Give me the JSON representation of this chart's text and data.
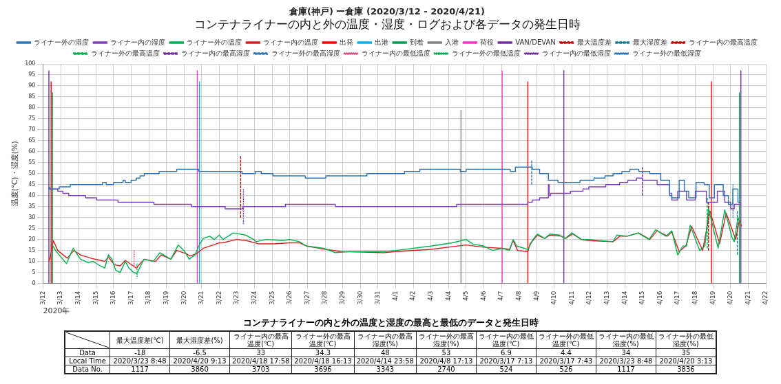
{
  "chart_data": [
    {
      "type": "line",
      "title": "倉庫(神戸) ー倉庫 (2020/3/12 - 2020/4/21)",
      "subtitle": "コンテナライナーの内と外の温度・湿度・ログおよび各データの発生日時",
      "xlabel": "2020年",
      "ylabel": "温度(℃)・湿度(%)",
      "xlim": [
        "2020-03-12",
        "2020-04-22"
      ],
      "ylim": [
        0,
        100
      ],
      "xticks": [
        {
          "value": "2020-03-12",
          "label": "3/12"
        },
        {
          "value": "2020-03-13",
          "label": "3/13"
        },
        {
          "value": "2020-03-14",
          "label": "3/14"
        },
        {
          "value": "2020-03-15",
          "label": "3/15"
        },
        {
          "value": "2020-03-16",
          "label": "3/16"
        },
        {
          "value": "2020-03-17",
          "label": "3/17"
        },
        {
          "value": "2020-03-18",
          "label": "3/18"
        },
        {
          "value": "2020-03-19",
          "label": "3/19"
        },
        {
          "value": "2020-03-20",
          "label": "3/20"
        },
        {
          "value": "2020-03-21",
          "label": "3/21"
        },
        {
          "value": "2020-03-22",
          "label": "3/22"
        },
        {
          "value": "2020-03-23",
          "label": "3/23"
        },
        {
          "value": "2020-03-24",
          "label": "3/24"
        },
        {
          "value": "2020-03-25",
          "label": "3/25"
        },
        {
          "value": "2020-03-26",
          "label": "3/26"
        },
        {
          "value": "2020-03-27",
          "label": "3/27"
        },
        {
          "value": "2020-03-28",
          "label": "3/28"
        },
        {
          "value": "2020-03-29",
          "label": "3/29"
        },
        {
          "value": "2020-03-30",
          "label": "3/30"
        },
        {
          "value": "2020-03-31",
          "label": "3/31"
        },
        {
          "value": "2020-04-01",
          "label": "4/1"
        },
        {
          "value": "2020-04-02",
          "label": "4/2"
        },
        {
          "value": "2020-04-03",
          "label": "4/3"
        },
        {
          "value": "2020-04-04",
          "label": "4/4"
        },
        {
          "value": "2020-04-05",
          "label": "4/5"
        },
        {
          "value": "2020-04-06",
          "label": "4/6"
        },
        {
          "value": "2020-04-07",
          "label": "4/7"
        },
        {
          "value": "2020-04-08",
          "label": "4/8"
        },
        {
          "value": "2020-04-09",
          "label": "4/9"
        },
        {
          "value": "2020-04-10",
          "label": "4/10"
        },
        {
          "value": "2020-04-11",
          "label": "4/11"
        },
        {
          "value": "2020-04-12",
          "label": "4/12"
        },
        {
          "value": "2020-04-13",
          "label": "4/13"
        },
        {
          "value": "2020-04-14",
          "label": "4/14"
        },
        {
          "value": "2020-04-15",
          "label": "4/15"
        },
        {
          "value": "2020-04-16",
          "label": "4/16"
        },
        {
          "value": "2020-04-17",
          "label": "4/17"
        },
        {
          "value": "2020-04-18",
          "label": "4/18"
        },
        {
          "value": "2020-04-19",
          "label": "4/19"
        },
        {
          "value": "2020-04-20",
          "label": "4/20"
        },
        {
          "value": "2020-04-21",
          "label": "4/21"
        },
        {
          "value": "2020-04-22",
          "label": "4/22"
        }
      ],
      "yticks": [
        0,
        5,
        10,
        15,
        20,
        25,
        30,
        35,
        40,
        45,
        50,
        55,
        60,
        65,
        70,
        75,
        80,
        85,
        90,
        95,
        100
      ],
      "grid": true,
      "legend": "top",
      "marker": "none",
      "series": [
        {
          "name": "ライナー外の湿度",
          "type": "step",
          "color": "#2e75b6",
          "x": [
            "2020-03-12T08:00",
            "2020-03-12T22:00",
            "2020-03-13T13:00",
            "2020-03-15T09:00",
            "2020-03-15T14:00",
            "2020-03-16T00:00",
            "2020-03-16T13:00",
            "2020-03-16T16:00",
            "2020-03-17T00:00",
            "2020-03-17T07:00",
            "2020-03-17T12:00",
            "2020-03-17T18:00",
            "2020-03-18T14:00",
            "2020-03-19T14:00",
            "2020-03-20T20:00",
            "2020-03-23T07:00",
            "2020-03-24T01:00",
            "2020-03-24T09:00",
            "2020-03-25T01:00",
            "2020-03-26T21:00",
            "2020-03-28T01:00",
            "2020-03-30T09:00",
            "2020-04-01T12:00",
            "2020-04-02T09:00",
            "2020-04-04T16:00",
            "2020-04-05T00:00",
            "2020-04-07T12:00",
            "2020-04-07T19:00",
            "2020-04-08T18:00",
            "2020-04-09T04:00",
            "2020-04-09T16:00",
            "2020-04-10T05:00",
            "2020-04-11T11:00",
            "2020-04-12T06:00",
            "2020-04-12T21:00",
            "2020-04-13T08:00",
            "2020-04-13T20:00",
            "2020-04-14T07:00",
            "2020-04-14T19:00",
            "2020-04-15T10:00",
            "2020-04-16T01:00",
            "2020-04-16T13:00",
            "2020-04-16T16:00",
            "2020-04-17T02:00",
            "2020-04-17T09:00",
            "2020-04-17T15:00",
            "2020-04-18T01:00",
            "2020-04-18T12:00",
            "2020-04-18T19:00",
            "2020-04-19T02:00",
            "2020-04-19T14:00",
            "2020-04-19T21:00",
            "2020-04-20T03:00",
            "2020-04-20T10:00",
            "2020-04-20T13:00"
          ],
          "values": [
            44,
            43,
            44,
            45,
            46,
            45,
            46,
            47,
            46,
            47,
            48,
            49,
            50,
            51,
            52,
            51,
            50,
            51,
            50,
            49,
            48,
            49,
            50,
            51,
            52,
            51,
            52,
            51,
            53,
            52,
            50,
            47,
            46,
            47,
            48,
            49,
            50,
            51,
            52,
            51,
            50,
            47,
            40,
            39,
            47,
            42,
            39,
            46,
            45,
            39,
            45,
            40,
            36,
            43,
            37
          ]
        },
        {
          "name": "ライナー内の湿度",
          "type": "step",
          "color": "#8040c0",
          "x": [
            "2020-03-12T09:00",
            "2020-03-12T20:00",
            "2020-03-13T03:00",
            "2020-03-13T11:00",
            "2020-03-14T10:00",
            "2020-03-15T01:00",
            "2020-03-16T06:00",
            "2020-03-18T07:00",
            "2020-03-20T10:00",
            "2020-03-22T08:00",
            "2020-03-23T08:00",
            "2020-03-25T18:00",
            "2020-03-28T14:00",
            "2020-04-04T11:00",
            "2020-04-08T12:00",
            "2020-04-08T18:00",
            "2020-04-09T04:00",
            "2020-04-09T16:00",
            "2020-04-09T17:00",
            "2020-04-09T19:00",
            "2020-04-10T22:00",
            "2020-04-11T15:00",
            "2020-04-11T23:00",
            "2020-04-12T22:00",
            "2020-04-13T17:00",
            "2020-04-14T04:00",
            "2020-04-14T16:00",
            "2020-04-15T00:00",
            "2020-04-15T20:00",
            "2020-04-16T13:00",
            "2020-04-16T16:00",
            "2020-04-17T00:00",
            "2020-04-17T12:00",
            "2020-04-18T00:00",
            "2020-04-18T15:00",
            "2020-04-19T06:00",
            "2020-04-19T16:00",
            "2020-04-20T00:00",
            "2020-04-20T05:00",
            "2020-04-20T13:00"
          ],
          "values": [
            44,
            43,
            42,
            41,
            40,
            39,
            38,
            37,
            36,
            35,
            34,
            35,
            36,
            35,
            36,
            37,
            38,
            39,
            45,
            40,
            41,
            42,
            43,
            44,
            45,
            46,
            47,
            48,
            47,
            45,
            41,
            38,
            42,
            38,
            42,
            37,
            42,
            37,
            34,
            36
          ]
        },
        {
          "name": "ライナー外の温度",
          "color": "#00b050",
          "x": [
            "2020-03-12T12:00",
            "2020-03-12T17:00",
            "2020-03-13T08:00",
            "2020-03-13T17:00",
            "2020-03-14T03:00",
            "2020-03-14T13:00",
            "2020-03-14T20:00",
            "2020-03-15T06:00",
            "2020-03-15T12:00",
            "2020-03-15T17:00",
            "2020-03-15T22:00",
            "2020-03-16T03:00",
            "2020-03-16T09:00",
            "2020-03-16T16:00",
            "2020-03-16T21:00",
            "2020-03-17T03:00",
            "2020-03-17T08:00",
            "2020-03-17T17:00",
            "2020-03-18T06:00",
            "2020-03-18T15:00",
            "2020-03-19T06:00",
            "2020-03-19T16:00",
            "2020-03-20T00:00",
            "2020-03-20T07:00",
            "2020-03-20T15:00",
            "2020-03-20T20:00",
            "2020-03-21T02:00",
            "2020-03-21T11:00",
            "2020-03-21T17:00",
            "2020-03-22T00:00",
            "2020-03-22T05:00",
            "2020-03-22T19:00",
            "2020-03-23T12:00",
            "2020-03-23T23:00",
            "2020-03-24T02:00",
            "2020-03-24T16:00",
            "2020-03-25T14:00",
            "2020-03-26T00:00",
            "2020-03-26T13:00",
            "2020-03-26T23:00",
            "2020-03-27T22:00",
            "2020-03-28T14:00",
            "2020-03-29T10:00",
            "2020-03-30T19:00",
            "2020-03-31T08:00",
            "2020-04-01T00:00",
            "2020-04-03T00:00",
            "2020-04-04T05:00",
            "2020-04-05T00:00",
            "2020-04-05T09:00",
            "2020-04-06T00:00",
            "2020-04-06T12:00",
            "2020-04-07T01:00",
            "2020-04-07T11:00",
            "2020-04-07T16:00",
            "2020-04-07T21:00",
            "2020-04-08T12:00",
            "2020-04-08T19:00",
            "2020-04-09T01:00",
            "2020-04-09T11:00",
            "2020-04-09T18:00",
            "2020-04-10T07:00",
            "2020-04-10T15:00",
            "2020-04-11T00:00",
            "2020-04-11T13:00",
            "2020-04-11T23:00",
            "2020-04-13T08:00",
            "2020-04-13T13:00",
            "2020-04-14T03:00",
            "2020-04-14T18:00",
            "2020-04-15T09:00",
            "2020-04-15T18:00",
            "2020-04-16T08:00",
            "2020-04-16T16:00",
            "2020-04-17T00:00",
            "2020-04-17T07:00",
            "2020-04-17T12:00",
            "2020-04-17T17:00",
            "2020-04-18T06:00",
            "2020-04-18T13:00",
            "2020-04-18T18:00",
            "2020-04-18T21:00",
            "2020-04-19T07:00",
            "2020-04-19T16:00",
            "2020-04-20T02:00",
            "2020-04-20T05:00",
            "2020-04-20T10:00",
            "2020-04-20T14:00"
          ],
          "values": [
            18,
            15,
            9,
            16,
            11,
            9.5,
            10,
            8,
            7,
            13,
            11,
            6,
            5,
            10,
            7,
            5,
            4.5,
            11,
            10,
            14,
            11,
            17.5,
            15,
            11,
            13,
            17,
            20.5,
            21.5,
            20,
            22,
            20,
            23,
            22,
            20,
            19,
            20,
            19.5,
            20,
            19,
            17,
            16,
            14,
            14.5,
            14.5,
            14.5,
            15,
            17,
            18.5,
            20,
            18,
            17,
            15,
            16,
            15,
            20,
            17,
            15.5,
            20,
            22.5,
            20.5,
            22.5,
            22,
            20.5,
            23,
            20,
            20,
            19,
            22,
            21.5,
            23,
            20,
            24.5,
            21.5,
            24,
            13,
            17,
            17,
            26.5,
            15,
            17,
            34,
            30,
            16,
            33.5,
            21,
            19,
            30,
            27
          ]
        },
        {
          "name": "ライナー内の温度",
          "color": "#d62020",
          "x": [
            "2020-03-12T08:00",
            "2020-03-12T10:00",
            "2020-03-12T14:00",
            "2020-03-12T20:00",
            "2020-03-13T09:00",
            "2020-03-13T18:00",
            "2020-03-14T03:00",
            "2020-03-14T17:00",
            "2020-03-15T06:00",
            "2020-03-15T12:00",
            "2020-03-15T17:00",
            "2020-03-16T01:00",
            "2020-03-16T09:00",
            "2020-03-16T16:00",
            "2020-03-17T07:00",
            "2020-03-17T12:00",
            "2020-03-17T18:00",
            "2020-03-18T09:00",
            "2020-03-18T17:00",
            "2020-03-19T06:00",
            "2020-03-19T14:00",
            "2020-03-20T03:00",
            "2020-03-20T08:00",
            "2020-03-20T17:00",
            "2020-03-21T02:00",
            "2020-03-21T16:00",
            "2020-03-22T00:00",
            "2020-03-22T05:00",
            "2020-03-22T23:00",
            "2020-03-23T13:00",
            "2020-03-24T06:00",
            "2020-03-25T02:00",
            "2020-03-26T00:00",
            "2020-03-26T13:00",
            "2020-03-26T23:00",
            "2020-03-28T01:00",
            "2020-03-28T21:00",
            "2020-03-31T08:00",
            "2020-04-01T00:00",
            "2020-04-03T00:00",
            "2020-04-05T00:00",
            "2020-04-06T00:00",
            "2020-04-07T01:00",
            "2020-04-07T11:00",
            "2020-04-07T16:00",
            "2020-04-07T22:00",
            "2020-04-08T12:00",
            "2020-04-08T15:00",
            "2020-04-09T01:00",
            "2020-04-09T11:00",
            "2020-04-09T18:00",
            "2020-04-10T10:00",
            "2020-04-10T15:00",
            "2020-04-11T01:00",
            "2020-04-11T13:00",
            "2020-04-11T23:00",
            "2020-04-13T08:00",
            "2020-04-13T17:00",
            "2020-04-14T03:00",
            "2020-04-14T19:00",
            "2020-04-15T10:00",
            "2020-04-15T20:00",
            "2020-04-16T10:00",
            "2020-04-16T16:00",
            "2020-04-17T02:00",
            "2020-04-17T11:00",
            "2020-04-17T19:00",
            "2020-04-18T10:00",
            "2020-04-18T20:00",
            "2020-04-19T09:00",
            "2020-04-19T18:00",
            "2020-04-20T07:00",
            "2020-04-20T12:00",
            "2020-04-20T15:00"
          ],
          "values": [
            10,
            12,
            19.5,
            15,
            11.5,
            15,
            13,
            11.5,
            10.5,
            10,
            12,
            8.5,
            8,
            10.5,
            7,
            9,
            11,
            10,
            13,
            11,
            15,
            13.5,
            12.5,
            13.5,
            16,
            17.5,
            18.5,
            18.5,
            20,
            19.5,
            18,
            18,
            18.5,
            18.5,
            17,
            15.5,
            14.5,
            14,
            14.5,
            15.5,
            17.5,
            16.5,
            16,
            15.5,
            19.5,
            15,
            14.5,
            18,
            22,
            20.5,
            22,
            21.5,
            20.5,
            22.5,
            20,
            19.5,
            19,
            21.5,
            21.5,
            23,
            20,
            24,
            21.5,
            23.5,
            14.5,
            17,
            26,
            15,
            33,
            18,
            32,
            20,
            29,
            26
          ]
        },
        {
          "name": "出発",
          "color": "#ff0000",
          "x": [
            "2020-03-12T11:00",
            "2020-03-12T11:00",
            null,
            "2020-04-08T12:00",
            "2020-04-08T12:00",
            null,
            "2020-04-18T22:00",
            "2020-04-18T22:00"
          ],
          "values": [
            0,
            92,
            null,
            0,
            92,
            null,
            0,
            92
          ]
        },
        {
          "name": "出港",
          "color": "#00b0f0",
          "x": [
            "2020-03-20T21:00",
            "2020-03-20T21:00"
          ],
          "values": [
            0,
            92
          ]
        },
        {
          "name": "到着",
          "color": "#00a050",
          "x": [
            "2020-03-12T13:00",
            "2020-03-12T13:00",
            null,
            "2020-04-20T12:00",
            "2020-04-20T12:00"
          ],
          "values": [
            0,
            87,
            null,
            0,
            87
          ]
        },
        {
          "name": "入港",
          "color": "#808080",
          "x": [
            "2020-04-04T17:00",
            "2020-04-04T17:00"
          ],
          "values": [
            0,
            79
          ]
        },
        {
          "name": "荷役",
          "color": "#ff33cc",
          "x": [
            "2020-03-20T18:00",
            "2020-03-20T18:00",
            null,
            "2020-04-07T01:00",
            "2020-04-07T01:00"
          ],
          "values": [
            0,
            97,
            null,
            0,
            97
          ]
        },
        {
          "name": "VAN/DEVAN",
          "color": "#7030a0",
          "x": [
            "2020-03-12T08:00",
            "2020-03-12T08:00",
            null,
            "2020-04-10T13:00",
            "2020-04-10T13:00",
            null,
            "2020-04-20T14:00",
            "2020-04-20T14:00"
          ],
          "values": [
            0,
            97,
            null,
            0,
            97,
            null,
            0,
            97
          ]
        },
        {
          "name": "最大温度差",
          "color": "#c00000",
          "line_style": "dashed",
          "x": [
            "2020-03-23T05:00",
            "2020-03-23T05:00"
          ],
          "values": [
            30,
            58
          ]
        },
        {
          "name": "最大湿度差",
          "color": "#1f7a8c",
          "line_style": "dashed",
          "x": [
            "2020-04-20T09:13",
            "2020-04-20T09:13"
          ],
          "values": [
            13,
            33
          ]
        },
        {
          "name": "ライナー内の最高温度",
          "color": "#c00000",
          "line_style": "dashed",
          "x": [
            "2020-04-18T17:58",
            "2020-04-18T17:58"
          ],
          "values": [
            15,
            37
          ]
        },
        {
          "name": "ライナー外の最高温度",
          "color": "#00b050",
          "line_style": "dashed",
          "x": [
            "2020-04-18T16:13",
            "2020-04-18T16:13"
          ],
          "values": [
            16,
            39
          ]
        },
        {
          "name": "ライナー内の最高湿度",
          "color": "#7030a0",
          "line_style": "dashed",
          "x": [
            "2020-04-14T23:58",
            "2020-04-14T23:58"
          ],
          "values": [
            40,
            53
          ]
        },
        {
          "name": "ライナー外の最高湿度",
          "color": "#2e75b6",
          "line_style": "dashed",
          "x": [
            "2020-04-08T17:13",
            "2020-04-08T17:13"
          ],
          "values": [
            45,
            56
          ]
        },
        {
          "name": "ライナー内の最低温度",
          "color": "#e0507a",
          "line_style": "dotted",
          "x": [
            "2020-03-17T04:00",
            "2020-03-17T04:00"
          ],
          "values": [
            8,
            15
          ]
        },
        {
          "name": "ライナー外の最低温度",
          "color": "#00b050",
          "line_style": "dotted",
          "x": [
            "2020-03-17T08:00",
            "2020-03-17T08:00"
          ],
          "values": [
            3,
            9
          ]
        },
        {
          "name": "ライナー内の最低湿度",
          "color": "#7030a0",
          "line_style": "dotted",
          "x": [
            "2020-03-23T08:48",
            "2020-03-23T08:48"
          ],
          "values": [
            27,
            43
          ]
        },
        {
          "name": "ライナー外の最低湿度",
          "color": "#2e75b6",
          "line_style": "dotted",
          "x": [
            "2020-04-20T03:13",
            "2020-04-20T03:13"
          ],
          "values": [
            30,
            45
          ]
        }
      ]
    },
    {
      "type": "other",
      "title": "コンテナライナーの内と外の温度と湿度の最高と最低のデータと発生日時",
      "categories": [
        "最大温度差(℃)",
        "最大湿度差(%)",
        "ライナー内の最高温度(℃)",
        "ライナー外の最高温度(℃)",
        "ライナー内の最高湿度(%)",
        "ライナー外の最高湿度(%)",
        "ライナー内の最低温度(℃)",
        "ライナー外の最低温度(℃)",
        "ライナー内の最低湿度(%)",
        "ライナー外の最低湿度(%)"
      ],
      "y_categories": [
        "Data",
        "Local Time",
        "Data No."
      ],
      "cell_labels": [
        [
          "-18",
          "-6.5",
          "33",
          "34.3",
          "48",
          "53",
          "6.9",
          "4.4",
          "34",
          "35"
        ],
        [
          "2020/3/23 8:48",
          "2020/4/20 9:13",
          "2020/4/18 17:58",
          "2020/4/18 16:13",
          "2020/4/14 23:58",
          "2020/4/8 17:13",
          "2020/3/17 7:13",
          "2020/3/17 7:43",
          "2020/3/23 8:48",
          "2020/4/20 3:13"
        ],
        [
          "1117",
          "3860",
          "3703",
          "3696",
          "3343",
          "2740",
          "524",
          "526",
          "1117",
          "3836"
        ]
      ]
    }
  ]
}
